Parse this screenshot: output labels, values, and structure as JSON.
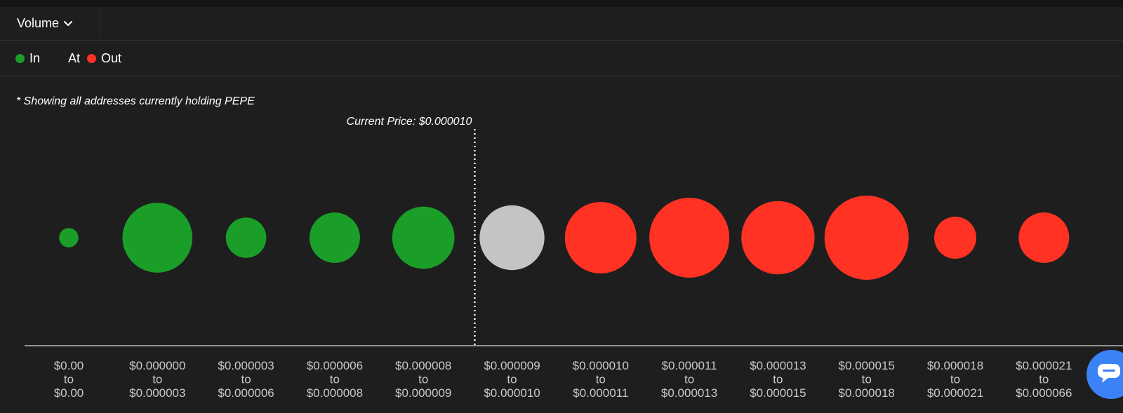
{
  "toolbar": {
    "metric_label": "Volume"
  },
  "legend": [
    {
      "label": "In",
      "color": "#1a9e28"
    },
    {
      "label": "At",
      "color": "#c4c4c4"
    },
    {
      "label": "Out",
      "color": "#ff3224"
    }
  ],
  "note": "* Showing all addresses currently holding PEPE",
  "chart_data": {
    "type": "bubble",
    "current_price_label": "Current Price: $0.000010",
    "current_price_between_categories": [
      5,
      6
    ],
    "categories": [
      {
        "from": "$0.00",
        "to": "$0.00",
        "status": "In",
        "relative_size": 0.23
      },
      {
        "from": "$0.000000",
        "to": "$0.000003",
        "status": "In",
        "relative_size": 0.83
      },
      {
        "from": "$0.000003",
        "to": "$0.000006",
        "status": "In",
        "relative_size": 0.48
      },
      {
        "from": "$0.000006",
        "to": "$0.000008",
        "status": "In",
        "relative_size": 0.6
      },
      {
        "from": "$0.000008",
        "to": "$0.000009",
        "status": "In",
        "relative_size": 0.74
      },
      {
        "from": "$0.000009",
        "to": "$0.000010",
        "status": "At",
        "relative_size": 0.77
      },
      {
        "from": "$0.000010",
        "to": "$0.000011",
        "status": "Out",
        "relative_size": 0.85
      },
      {
        "from": "$0.000011",
        "to": "$0.000013",
        "status": "Out",
        "relative_size": 0.95
      },
      {
        "from": "$0.000013",
        "to": "$0.000015",
        "status": "Out",
        "relative_size": 0.87
      },
      {
        "from": "$0.000015",
        "to": "$0.000018",
        "status": "Out",
        "relative_size": 1.0
      },
      {
        "from": "$0.000018",
        "to": "$0.000021",
        "status": "Out",
        "relative_size": 0.5
      },
      {
        "from": "$0.000021",
        "to": "$0.000066",
        "status": "Out",
        "relative_size": 0.6
      }
    ],
    "range_connector": "to",
    "grid": false
  }
}
